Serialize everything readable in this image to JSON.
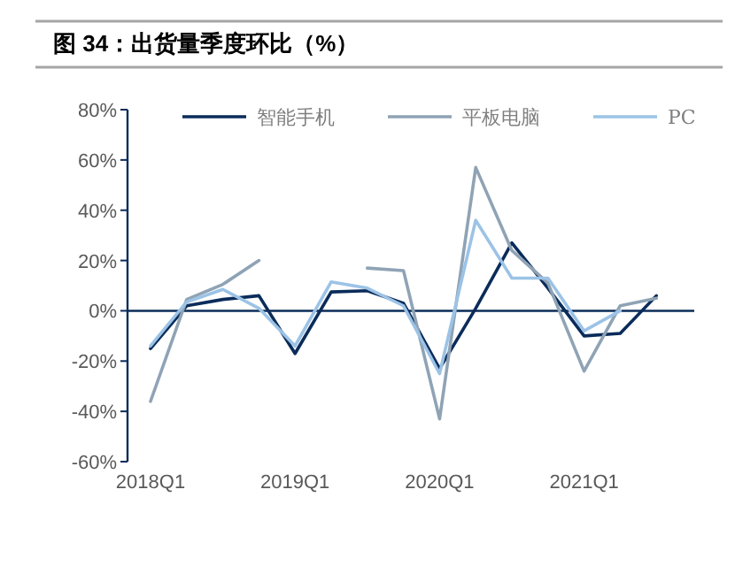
{
  "chart_data": {
    "type": "line",
    "title": "图 34：出货量季度环比（%）",
    "categories": [
      "2018Q1",
      null,
      null,
      null,
      "2019Q1",
      null,
      null,
      null,
      "2020Q1",
      null,
      null,
      null,
      "2021Q1",
      null,
      null
    ],
    "series": [
      {
        "name": "智能手机",
        "color": "#0b2c5a",
        "values": [
          -15,
          2,
          4.5,
          6,
          -17,
          7.5,
          8,
          3,
          -23,
          1,
          27,
          9,
          -10,
          -9,
          6
        ]
      },
      {
        "name": "平板电脑",
        "color": "#8fa3b5",
        "values": [
          -36,
          4.5,
          10.5,
          20,
          null,
          null,
          17,
          16,
          -43,
          57,
          24,
          11,
          -24,
          2,
          5
        ]
      },
      {
        "name": "PC",
        "color": "#9cc3e6",
        "values": [
          -14,
          3.5,
          8.5,
          1,
          -14,
          11.5,
          9,
          2,
          -25,
          36,
          13,
          13,
          -8,
          0,
          null
        ]
      }
    ],
    "ylim": [
      -60,
      80
    ],
    "yticks": [
      {
        "value": -60,
        "label": "-60%"
      },
      {
        "value": -40,
        "label": "-40%"
      },
      {
        "value": -20,
        "label": "-20%"
      },
      {
        "value": 0,
        "label": "0%"
      },
      {
        "value": 20,
        "label": "20%"
      },
      {
        "value": 40,
        "label": "40%"
      },
      {
        "value": 60,
        "label": "60%"
      },
      {
        "value": 80,
        "label": "80%"
      }
    ],
    "legend": "top",
    "grid": false,
    "marker": "none",
    "line_style": "solid"
  }
}
